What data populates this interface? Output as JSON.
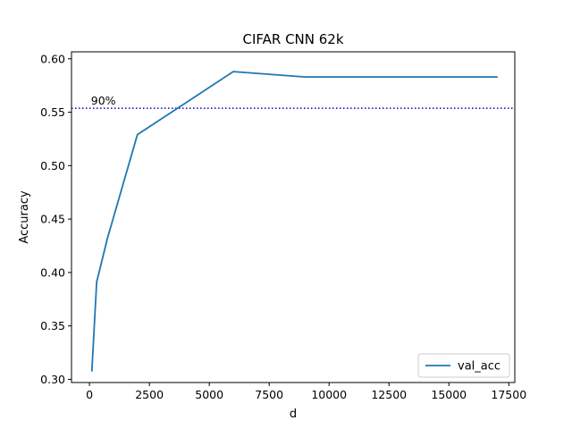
{
  "chart_data": {
    "type": "line",
    "title": "CIFAR CNN 62k",
    "xlabel": "d",
    "ylabel": "Accuracy",
    "xlim": [
      -750,
      17750
    ],
    "ylim": [
      0.297,
      0.6065
    ],
    "xticks": [
      0,
      2500,
      5000,
      7500,
      10000,
      12500,
      15000,
      17500
    ],
    "yticks": [
      0.3,
      0.35,
      0.4,
      0.45,
      0.5,
      0.55,
      0.6
    ],
    "grid": false,
    "legend_position": "lower-right",
    "series": [
      {
        "name": "val_acc",
        "color": "#1f77b4",
        "x": [
          100,
          300,
          750,
          2000,
          6000,
          9000,
          17000
        ],
        "y": [
          0.308,
          0.391,
          0.432,
          0.529,
          0.588,
          0.583,
          0.583
        ]
      }
    ],
    "hline": {
      "y": 0.5537,
      "label": "90%",
      "color": "#0000cc",
      "style": "dotted"
    }
  }
}
